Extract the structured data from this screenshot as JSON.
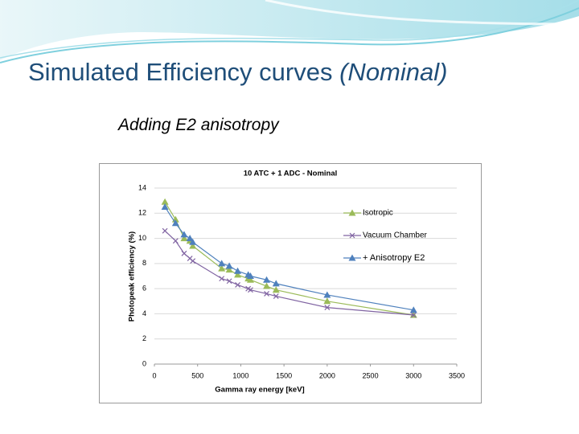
{
  "slide": {
    "title": "Simulated Efficiency curves",
    "title_italic": "(Nominal)",
    "subtitle": "Adding E2 anisotropy"
  },
  "chart_data": {
    "type": "line",
    "title": "10 ATC + 1 ADC - Nominal",
    "x_label": "Gamma ray energy [keV]",
    "y_label": "Photopeak efficiency (%)",
    "x": [
      122,
      245,
      344,
      411,
      444,
      779,
      867,
      964,
      1086,
      1112,
      1299,
      1408,
      2000,
      3000
    ],
    "series": [
      {
        "name": "Isotropic",
        "color": "#9bbb59",
        "marker": "triangle",
        "values": [
          12.9,
          11.5,
          10.0,
          9.8,
          9.4,
          7.6,
          7.5,
          7.1,
          6.8,
          6.7,
          6.2,
          5.9,
          5.0,
          3.9
        ]
      },
      {
        "name": "Vacuum Chamber",
        "color": "#8064a2",
        "marker": "x",
        "values": [
          10.6,
          9.8,
          8.8,
          8.4,
          8.2,
          6.8,
          6.6,
          6.3,
          6.0,
          5.9,
          5.6,
          5.4,
          4.5,
          3.9
        ]
      },
      {
        "name": "+ Anisotropy E2",
        "color": "#4f81bd",
        "marker": "triangle",
        "values": [
          12.5,
          11.2,
          10.3,
          10.0,
          9.7,
          8.0,
          7.8,
          7.4,
          7.1,
          7.0,
          6.7,
          6.4,
          5.5,
          4.3
        ]
      }
    ],
    "xlim": [
      0,
      3500
    ],
    "xticks": [
      0,
      500,
      1000,
      1500,
      2000,
      2500,
      3000,
      3500
    ],
    "ylim": [
      0,
      14
    ],
    "yticks": [
      0,
      2,
      4,
      6,
      8,
      10,
      12,
      14
    ],
    "grid": true,
    "legend": "right"
  }
}
